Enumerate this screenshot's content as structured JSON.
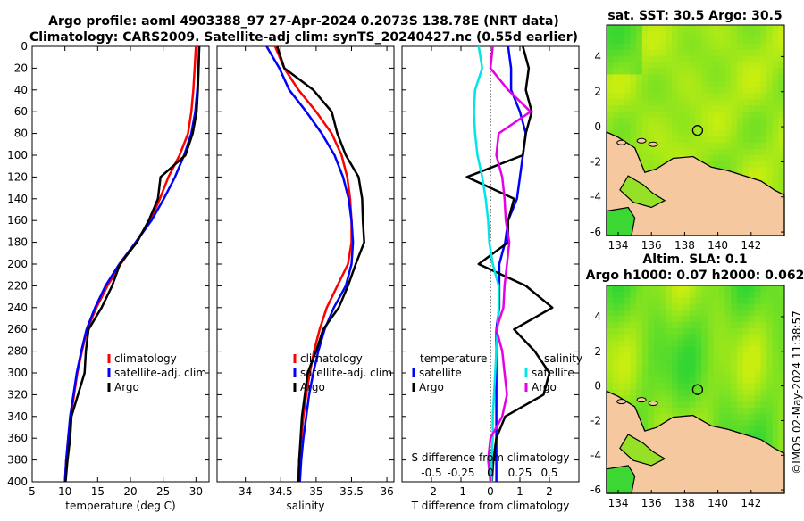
{
  "titles": {
    "line1": "Argo profile: aoml 4903388_97 27-Apr-2024 0.2073S 138.78E (NRT data)",
    "line2": "Climatology: CARS2009. Satellite-adj clim: synTS_20240427.nc (0.55d earlier)",
    "sst": "sat. SST: 30.5 Argo: 30.5",
    "sla1": "Altim. SLA: 0.1",
    "sla2": "Argo h1000: 0.07 h2000: 0.062"
  },
  "footer": {
    "timestamp": "©IMOS 02-May-2024 11:38:57"
  },
  "colors": {
    "climatology": "#ff0000",
    "satellite": "#0000ff",
    "argo": "#000000",
    "salinity_satellite": "#00e5e5",
    "salinity_argo": "#e600e6",
    "land": "#f5c8a0",
    "ocean_a": "#c8ee10",
    "ocean_b": "#33d633"
  },
  "chart_data": [
    {
      "type": "line",
      "id": "temperature",
      "xlabel": "temperature (deg C)",
      "ylabel": "",
      "xlim": [
        5,
        32
      ],
      "ylim": [
        400,
        0
      ],
      "x_ticks": [
        "5",
        "10",
        "15",
        "20",
        "25",
        "30"
      ],
      "y_ticks": [
        "0",
        "20",
        "40",
        "60",
        "80",
        "100",
        "120",
        "140",
        "160",
        "180",
        "200",
        "220",
        "240",
        "260",
        "280",
        "300",
        "320",
        "340",
        "360",
        "380",
        "400"
      ],
      "legend": [
        "climatology",
        "satellite-adj. clim",
        "Argo"
      ],
      "depth": [
        0,
        20,
        40,
        60,
        80,
        100,
        120,
        140,
        160,
        180,
        200,
        220,
        240,
        260,
        280,
        300,
        320,
        340,
        360,
        380,
        400
      ],
      "series": [
        {
          "name": "climatology",
          "values": [
            30.0,
            29.8,
            29.6,
            29.3,
            28.8,
            27.5,
            25.8,
            24.5,
            23.0,
            20.8,
            18.5,
            16.5,
            14.8,
            13.4,
            12.6,
            11.9,
            11.4,
            10.9,
            10.5,
            10.2,
            10.0
          ]
        },
        {
          "name": "satellite-adj. clim",
          "values": [
            30.5,
            30.4,
            30.2,
            29.9,
            29.3,
            28.2,
            26.8,
            25.1,
            23.2,
            20.8,
            18.3,
            16.2,
            14.6,
            13.3,
            12.5,
            11.8,
            11.3,
            10.8,
            10.5,
            10.2,
            10.0
          ]
        },
        {
          "name": "Argo",
          "values": [
            30.5,
            30.4,
            30.3,
            30.1,
            29.5,
            28.4,
            24.6,
            24.2,
            22.8,
            21.0,
            18.4,
            17.2,
            15.6,
            13.6,
            13.2,
            13.0,
            12.0,
            11.0,
            10.8,
            10.4,
            10.1
          ]
        }
      ]
    },
    {
      "type": "line",
      "id": "salinity",
      "xlabel": "salinity",
      "xlim": [
        33.6,
        36.1
      ],
      "ylim": [
        400,
        0
      ],
      "x_ticks": [
        "34",
        "34.5",
        "35",
        "35.5",
        "36"
      ],
      "legend": [
        "climatology",
        "satellite-adj. clim",
        "Argo"
      ],
      "depth": [
        0,
        20,
        40,
        60,
        80,
        100,
        120,
        140,
        160,
        180,
        200,
        220,
        240,
        260,
        280,
        300,
        320,
        340,
        360,
        380,
        400
      ],
      "series": [
        {
          "name": "climatology",
          "values": [
            34.42,
            34.55,
            34.75,
            35.0,
            35.22,
            35.36,
            35.44,
            35.48,
            35.5,
            35.5,
            35.45,
            35.3,
            35.15,
            35.05,
            34.97,
            34.91,
            34.86,
            34.82,
            34.79,
            34.76,
            34.75
          ]
        },
        {
          "name": "satellite-adj. clim",
          "values": [
            34.3,
            34.48,
            34.62,
            34.86,
            35.08,
            35.26,
            35.38,
            35.46,
            35.5,
            35.52,
            35.5,
            35.42,
            35.25,
            35.12,
            35.03,
            34.96,
            34.9,
            34.86,
            34.82,
            34.79,
            34.77
          ]
        },
        {
          "name": "Argo",
          "values": [
            34.45,
            34.55,
            34.96,
            35.22,
            35.3,
            35.42,
            35.6,
            35.65,
            35.66,
            35.68,
            35.56,
            35.45,
            35.32,
            35.1,
            35.0,
            34.88,
            34.84,
            34.8,
            34.78,
            34.76,
            34.75
          ]
        }
      ]
    },
    {
      "type": "line",
      "id": "difference",
      "xlabel": "T difference from climatology",
      "xlim": [
        -3,
        3
      ],
      "ylim": [
        400,
        0
      ],
      "x_ticks": [
        "-2",
        "-1",
        "0",
        "1",
        "2"
      ],
      "top_label": "S difference from climatology",
      "top_ticks": [
        "-0.5",
        "-0.25",
        "0",
        "0.25",
        "0.5"
      ],
      "legend_left_title": "temperature",
      "legend_right_title": "salinity",
      "legend_left": [
        "satellite",
        "Argo"
      ],
      "legend_right": [
        "satellite",
        "Argo"
      ],
      "depth": [
        0,
        20,
        40,
        60,
        80,
        100,
        120,
        140,
        160,
        180,
        200,
        220,
        240,
        260,
        280,
        300,
        320,
        340,
        360,
        380,
        400
      ],
      "series": [
        {
          "name": "temperature satellite",
          "values": [
            0.6,
            0.7,
            0.7,
            1.0,
            1.2,
            1.1,
            1.0,
            0.9,
            0.6,
            0.5,
            0.3,
            0.3,
            0.3,
            0.2,
            0.2,
            0.2,
            0.2,
            0.2,
            0.2,
            0.2,
            0.2
          ]
        },
        {
          "name": "temperature Argo",
          "values": [
            1.1,
            1.3,
            1.2,
            1.4,
            1.2,
            1.1,
            -0.8,
            0.8,
            0.6,
            0.6,
            -0.4,
            1.2,
            2.1,
            0.8,
            1.5,
            2.0,
            1.8,
            0.5,
            0.2,
            0.1,
            0.05
          ]
        },
        {
          "name": "salinity satellite",
          "values": [
            -0.1,
            -0.07,
            -0.13,
            -0.14,
            -0.13,
            -0.11,
            -0.07,
            -0.04,
            -0.02,
            -0.01,
            0.02,
            0.07,
            0.07,
            0.06,
            0.05,
            0.04,
            0.03,
            0.02,
            0.02,
            0.01,
            0.01
          ]
        },
        {
          "name": "salinity Argo",
          "values": [
            0.02,
            0.0,
            0.15,
            0.34,
            0.07,
            0.05,
            0.1,
            0.12,
            0.13,
            0.16,
            0.14,
            0.12,
            0.11,
            0.05,
            0.1,
            0.12,
            0.14,
            0.1,
            0.0,
            -0.02,
            0.0
          ]
        }
      ]
    },
    {
      "type": "heatmap",
      "id": "sst_map",
      "title": "sat. SST: 30.5 Argo: 30.5",
      "x_ticks": [
        "134",
        "136",
        "138",
        "140",
        "142"
      ],
      "y_ticks": [
        "4",
        "2",
        "0",
        "-2",
        "-4",
        "-6"
      ],
      "xlim": [
        133.3,
        144
      ],
      "ylim": [
        -6.2,
        5.8
      ],
      "marker": {
        "lon": 138.78,
        "lat": -0.21
      }
    },
    {
      "type": "heatmap",
      "id": "sla_map",
      "title": "Altim. SLA: 0.1 / Argo h1000: 0.07 h2000: 0.062",
      "x_ticks": [
        "134",
        "136",
        "138",
        "140",
        "142"
      ],
      "y_ticks": [
        "4",
        "2",
        "0",
        "-2",
        "-4",
        "-6"
      ],
      "xlim": [
        133.3,
        144
      ],
      "ylim": [
        -6.2,
        5.8
      ],
      "marker": {
        "lon": 138.78,
        "lat": -0.21
      }
    }
  ]
}
